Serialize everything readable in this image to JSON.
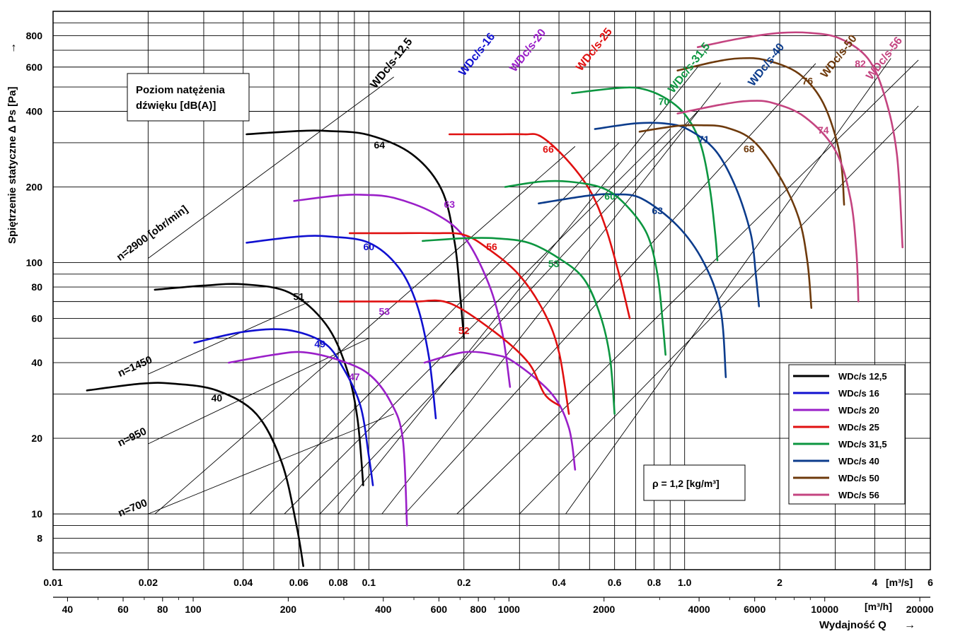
{
  "chart_data": {
    "type": "line",
    "title": "",
    "xlabel": "Wydajność Q",
    "xlabel_arrow": "→",
    "ylabel": "Spiętrzenie statyczne Δ Ps [Pa]",
    "ylabel_arrow": "→",
    "x_scale": "log",
    "y_scale": "log",
    "xlim": [
      0.01,
      6
    ],
    "ylim": [
      6,
      1000
    ],
    "x_ticks_m3s": [
      "0.01",
      "0.02",
      "0.04",
      "0.06",
      "0.08",
      "0.1",
      "0.2",
      "0.4",
      "0.6",
      "0.8",
      "1.0",
      "2",
      "4",
      "6"
    ],
    "x_unit_m3s": "[m³/s]",
    "x_ticks_m3h": [
      "40",
      "60",
      "80",
      "100",
      "200",
      "400",
      "600",
      "800",
      "1000",
      "2000",
      "4000",
      "6000",
      "10000",
      "20000"
    ],
    "x_unit_m3h": "[m³/h]",
    "y_ticks": [
      "8",
      "10",
      "20",
      "40",
      "60",
      "80",
      "100",
      "200",
      "400",
      "600",
      "800"
    ],
    "legend_position": "bottom-right",
    "grid": true,
    "series": [
      {
        "name": "WDc/s 12,5",
        "color": "#000000",
        "label": "WDc/s-12,5"
      },
      {
        "name": "WDc/s 16",
        "color": "#1010d0",
        "label": "WDc/s-16"
      },
      {
        "name": "WDc/s 20",
        "color": "#9a1fc8",
        "label": "WDc/s-20"
      },
      {
        "name": "WDc/s 25",
        "color": "#e01010",
        "label": "WDc/s-25"
      },
      {
        "name": "WDc/s 31,5",
        "color": "#0c9640",
        "label": "WDc/s-31,5"
      },
      {
        "name": "WDc/s 40",
        "color": "#0c3c8c",
        "label": "WDc/s-40"
      },
      {
        "name": "WDc/s 50",
        "color": "#6e3a0c",
        "label": "WDc/s-50"
      },
      {
        "name": "WDc/s 56",
        "color": "#c44480",
        "label": "WDc/s-56"
      }
    ],
    "curves": [
      {
        "s": 0,
        "pts": [
          [
            0.0128,
            31
          ],
          [
            0.019,
            33
          ],
          [
            0.024,
            33
          ],
          [
            0.033,
            31
          ],
          [
            0.044,
            25
          ],
          [
            0.053,
            16
          ],
          [
            0.059,
            9
          ],
          [
            0.062,
            6.2
          ]
        ]
      },
      {
        "s": 0,
        "pts": [
          [
            0.021,
            78
          ],
          [
            0.03,
            81
          ],
          [
            0.04,
            82
          ],
          [
            0.056,
            76
          ],
          [
            0.073,
            57
          ],
          [
            0.085,
            38
          ],
          [
            0.092,
            24
          ],
          [
            0.096,
            13
          ]
        ]
      },
      {
        "s": 0,
        "pts": [
          [
            0.041,
            324
          ],
          [
            0.06,
            334
          ],
          [
            0.074,
            334
          ],
          [
            0.1,
            322
          ],
          [
            0.137,
            270
          ],
          [
            0.17,
            195
          ],
          [
            0.187,
            120
          ],
          [
            0.195,
            72
          ],
          [
            0.2,
            50
          ]
        ]
      },
      {
        "s": 1,
        "pts": [
          [
            0.028,
            48
          ],
          [
            0.04,
            53
          ],
          [
            0.055,
            54
          ],
          [
            0.072,
            48
          ],
          [
            0.083,
            38
          ],
          [
            0.094,
            27
          ],
          [
            0.1,
            17
          ],
          [
            0.103,
            13
          ]
        ]
      },
      {
        "s": 1,
        "pts": [
          [
            0.041,
            120
          ],
          [
            0.06,
            127
          ],
          [
            0.075,
            127
          ],
          [
            0.1,
            120
          ],
          [
            0.124,
            96
          ],
          [
            0.142,
            68
          ],
          [
            0.155,
            42
          ],
          [
            0.163,
            24
          ]
        ]
      },
      {
        "s": 2,
        "pts": [
          [
            0.036,
            40
          ],
          [
            0.05,
            43
          ],
          [
            0.062,
            44
          ],
          [
            0.08,
            41
          ],
          [
            0.1,
            36
          ],
          [
            0.117,
            28
          ],
          [
            0.128,
            20
          ],
          [
            0.132,
            9
          ]
        ]
      },
      {
        "s": 2,
        "pts": [
          [
            0.058,
            176
          ],
          [
            0.08,
            185
          ],
          [
            0.097,
            186
          ],
          [
            0.12,
            181
          ],
          [
            0.16,
            158
          ],
          [
            0.2,
            127
          ],
          [
            0.24,
            82
          ],
          [
            0.265,
            52
          ],
          [
            0.28,
            32
          ]
        ]
      },
      {
        "s": 2,
        "pts": [
          [
            0.15,
            40
          ],
          [
            0.2,
            44
          ],
          [
            0.25,
            43
          ],
          [
            0.29,
            40
          ],
          [
            0.38,
            30
          ],
          [
            0.43,
            22
          ],
          [
            0.45,
            15
          ]
        ]
      },
      {
        "s": 3,
        "pts": [
          [
            0.081,
            70
          ],
          [
            0.11,
            70
          ],
          [
            0.14,
            70
          ],
          [
            0.18,
            69
          ],
          [
            0.25,
            53
          ],
          [
            0.32,
            40
          ],
          [
            0.36,
            30
          ],
          [
            0.4,
            27
          ]
        ]
      },
      {
        "s": 3,
        "pts": [
          [
            0.087,
            131
          ],
          [
            0.12,
            131
          ],
          [
            0.16,
            131
          ],
          [
            0.2,
            129
          ],
          [
            0.24,
            113
          ],
          [
            0.3,
            89
          ],
          [
            0.36,
            63
          ],
          [
            0.4,
            44
          ],
          [
            0.43,
            25
          ]
        ]
      },
      {
        "s": 3,
        "pts": [
          [
            0.18,
            324
          ],
          [
            0.25,
            324
          ],
          [
            0.31,
            324
          ],
          [
            0.35,
            318
          ],
          [
            0.42,
            260
          ],
          [
            0.5,
            195
          ],
          [
            0.56,
            140
          ],
          [
            0.62,
            90
          ],
          [
            0.67,
            60
          ]
        ]
      },
      {
        "s": 4,
        "pts": [
          [
            0.148,
            122
          ],
          [
            0.2,
            125
          ],
          [
            0.25,
            125
          ],
          [
            0.32,
            120
          ],
          [
            0.4,
            104
          ],
          [
            0.48,
            86
          ],
          [
            0.54,
            62
          ],
          [
            0.58,
            42
          ],
          [
            0.6,
            25
          ]
        ]
      },
      {
        "s": 4,
        "pts": [
          [
            0.27,
            200
          ],
          [
            0.35,
            210
          ],
          [
            0.43,
            210
          ],
          [
            0.55,
            198
          ],
          [
            0.65,
            170
          ],
          [
            0.76,
            130
          ],
          [
            0.82,
            90
          ],
          [
            0.85,
            60
          ],
          [
            0.87,
            43
          ]
        ]
      },
      {
        "s": 4,
        "pts": [
          [
            0.44,
            472
          ],
          [
            0.6,
            494
          ],
          [
            0.72,
            494
          ],
          [
            0.86,
            455
          ],
          [
            1.0,
            390
          ],
          [
            1.12,
            300
          ],
          [
            1.2,
            200
          ],
          [
            1.25,
            130
          ],
          [
            1.27,
            102
          ]
        ]
      },
      {
        "s": 5,
        "pts": [
          [
            0.345,
            172
          ],
          [
            0.5,
            185
          ],
          [
            0.6,
            187
          ],
          [
            0.73,
            180
          ],
          [
            0.95,
            140
          ],
          [
            1.15,
            100
          ],
          [
            1.3,
            65
          ],
          [
            1.35,
            35
          ]
        ]
      },
      {
        "s": 5,
        "pts": [
          [
            0.52,
            340
          ],
          [
            0.7,
            358
          ],
          [
            0.86,
            358
          ],
          [
            1.02,
            340
          ],
          [
            1.25,
            280
          ],
          [
            1.45,
            200
          ],
          [
            1.62,
            130
          ],
          [
            1.68,
            90
          ],
          [
            1.72,
            67
          ]
        ]
      },
      {
        "s": 6,
        "pts": [
          [
            0.72,
            332
          ],
          [
            0.95,
            350
          ],
          [
            1.13,
            352
          ],
          [
            1.35,
            345
          ],
          [
            1.65,
            305
          ],
          [
            2.0,
            220
          ],
          [
            2.3,
            150
          ],
          [
            2.45,
            100
          ],
          [
            2.52,
            66
          ]
        ]
      },
      {
        "s": 6,
        "pts": [
          [
            0.95,
            581
          ],
          [
            1.25,
            630
          ],
          [
            1.5,
            650
          ],
          [
            1.8,
            640
          ],
          [
            2.3,
            565
          ],
          [
            2.75,
            430
          ],
          [
            3.1,
            270
          ],
          [
            3.2,
            170
          ]
        ]
      },
      {
        "s": 7,
        "pts": [
          [
            0.95,
            392
          ],
          [
            1.3,
            425
          ],
          [
            1.6,
            440
          ],
          [
            1.9,
            432
          ],
          [
            2.4,
            380
          ],
          [
            3.0,
            280
          ],
          [
            3.35,
            180
          ],
          [
            3.5,
            110
          ],
          [
            3.55,
            70
          ]
        ]
      },
      {
        "s": 7,
        "pts": [
          [
            1.1,
            720
          ],
          [
            1.5,
            780
          ],
          [
            2.0,
            820
          ],
          [
            2.5,
            820
          ],
          [
            3.1,
            780
          ],
          [
            3.8,
            650
          ],
          [
            4.3,
            460
          ],
          [
            4.7,
            270
          ],
          [
            4.9,
            115
          ]
        ]
      }
    ],
    "speed_lines": [
      {
        "name": "n=2900 [obr/min]",
        "pts": [
          [
            0.02,
            104
          ],
          [
            0.12,
            548
          ]
        ]
      },
      {
        "name": "n=1450",
        "pts": [
          [
            0.02,
            36
          ],
          [
            0.065,
            70
          ]
        ]
      },
      {
        "name": "n=950",
        "pts": [
          [
            0.02,
            19
          ],
          [
            0.1,
            50
          ]
        ]
      },
      {
        "name": "n=700",
        "pts": [
          [
            0.02,
            10
          ],
          [
            0.12,
            25
          ]
        ]
      }
    ],
    "diag_lines": [
      [
        [
          0.021,
          10
        ],
        [
          0.45,
          290
        ]
      ],
      [
        [
          0.042,
          10
        ],
        [
          0.62,
          300
        ]
      ],
      [
        [
          0.054,
          10
        ],
        [
          0.9,
          340
        ]
      ],
      [
        [
          0.07,
          10
        ],
        [
          1.1,
          400
        ]
      ],
      [
        [
          0.08,
          10
        ],
        [
          1.1,
          600
        ]
      ],
      [
        [
          0.11,
          10
        ],
        [
          1.3,
          520
        ]
      ],
      [
        [
          0.13,
          10
        ],
        [
          2.6,
          620
        ]
      ],
      [
        [
          0.19,
          10
        ],
        [
          5.5,
          640
        ]
      ],
      [
        [
          0.3,
          10
        ],
        [
          5.5,
          420
        ]
      ],
      [
        [
          0.42,
          10
        ],
        [
          4.5,
          650
        ]
      ]
    ],
    "sound_labels": [
      {
        "t": "40",
        "x": 0.033,
        "y": 28,
        "s": 0
      },
      {
        "t": "51",
        "x": 0.06,
        "y": 71,
        "s": 0
      },
      {
        "t": "64",
        "x": 0.108,
        "y": 285,
        "s": 0
      },
      {
        "t": "52",
        "x": 0.2,
        "y": 52,
        "s": 3
      },
      {
        "t": "49",
        "x": 0.07,
        "y": 46,
        "s": 1
      },
      {
        "t": "60",
        "x": 0.1,
        "y": 112,
        "s": 1
      },
      {
        "t": "47",
        "x": 0.09,
        "y": 34,
        "s": 2
      },
      {
        "t": "53",
        "x": 0.112,
        "y": 62,
        "s": 2
      },
      {
        "t": "63",
        "x": 0.18,
        "y": 165,
        "s": 2
      },
      {
        "t": "56",
        "x": 0.245,
        "y": 112,
        "s": 3
      },
      {
        "t": "66",
        "x": 0.37,
        "y": 274,
        "s": 3
      },
      {
        "t": "53",
        "x": 0.385,
        "y": 96,
        "s": 4
      },
      {
        "t": "60",
        "x": 0.58,
        "y": 178,
        "s": 4
      },
      {
        "t": "70",
        "x": 0.86,
        "y": 424,
        "s": 4
      },
      {
        "t": "63",
        "x": 0.82,
        "y": 156,
        "s": 5
      },
      {
        "t": "71",
        "x": 1.15,
        "y": 300,
        "s": 5
      },
      {
        "t": "68",
        "x": 1.6,
        "y": 275,
        "s": 6
      },
      {
        "t": "76",
        "x": 2.45,
        "y": 512,
        "s": 6
      },
      {
        "t": "74",
        "x": 2.75,
        "y": 326,
        "s": 7
      },
      {
        "t": "82",
        "x": 3.6,
        "y": 600,
        "s": 7
      }
    ],
    "annotations": {
      "sound_box_line1": "Poziom natężenia",
      "sound_box_line2": "dźwięku [dB(A)]",
      "density": "ρ = 1,2 [kg/m³]"
    }
  }
}
